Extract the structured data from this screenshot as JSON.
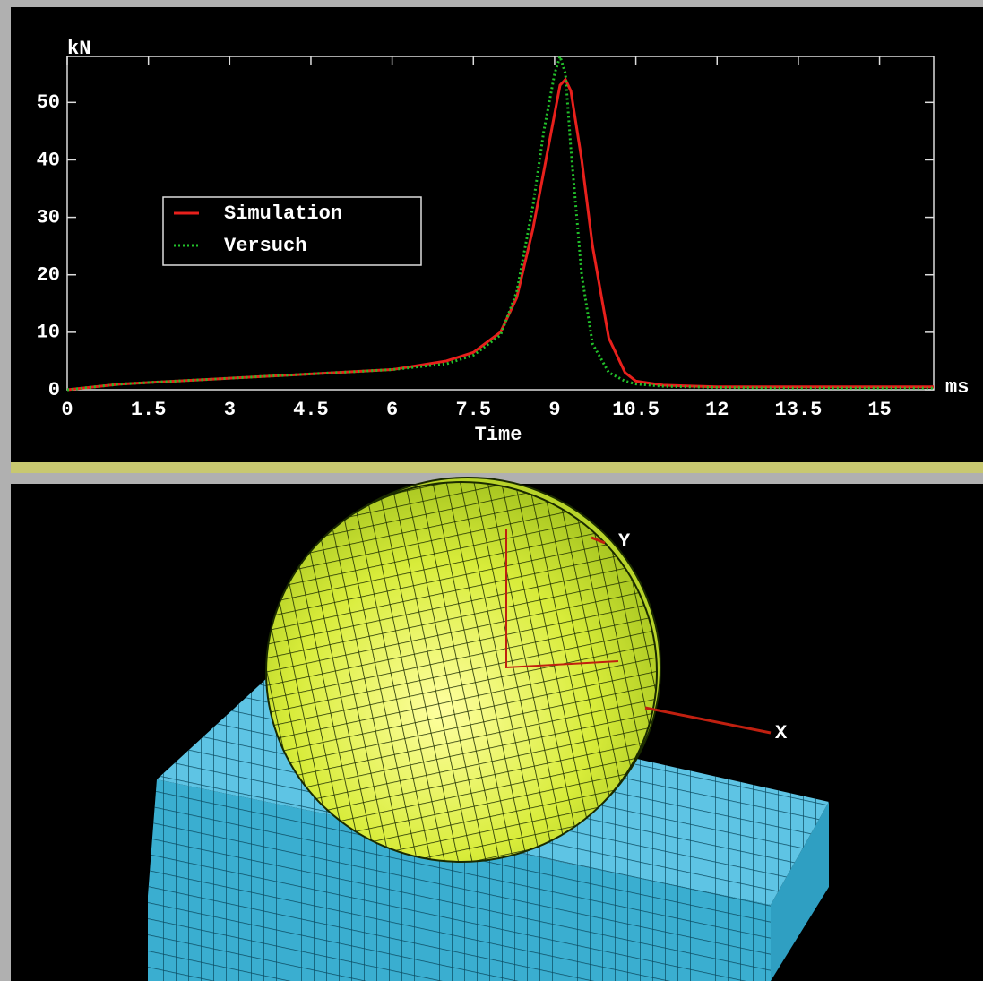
{
  "chart_data": {
    "type": "line",
    "x_label": "Time",
    "x_unit": "ms",
    "y_unit": "kN",
    "x": [
      0,
      1,
      2,
      3,
      4,
      5,
      6,
      7,
      7.5,
      8,
      8.3,
      8.6,
      8.8,
      9,
      9.1,
      9.2,
      9.3,
      9.5,
      9.7,
      10,
      10.3,
      10.5,
      11,
      12,
      13,
      14,
      15,
      16
    ],
    "series": [
      {
        "name": "Simulation",
        "color": "#e8201c",
        "style": "solid",
        "values": [
          0,
          1,
          1.5,
          2,
          2.5,
          3,
          3.5,
          5,
          6.5,
          10,
          16,
          28,
          38,
          48,
          53,
          54,
          52,
          40,
          25,
          9,
          3,
          1.5,
          0.8,
          0.5,
          0.5,
          0.5,
          0.5,
          0.5
        ]
      },
      {
        "name": "Versuch",
        "color": "#22c02a",
        "style": "dotted",
        "values": [
          0,
          1,
          1.5,
          2,
          2.5,
          3,
          3.5,
          4.5,
          6,
          9.5,
          17,
          32,
          45,
          55,
          58,
          55,
          42,
          20,
          8,
          3,
          1.5,
          1,
          0.6,
          0.4,
          0.3,
          0.3,
          0.3,
          0.3
        ]
      }
    ],
    "xlim": [
      0,
      16
    ],
    "xticks": [
      0,
      1.5,
      3,
      4.5,
      6,
      7.5,
      9,
      10.5,
      12,
      13.5,
      15
    ],
    "ylim": [
      0,
      58
    ],
    "yticks": [
      0,
      10,
      20,
      30,
      40,
      50
    ],
    "legend": "upper-left"
  },
  "viewport": {
    "axis_labels": [
      "Y",
      "X"
    ]
  }
}
